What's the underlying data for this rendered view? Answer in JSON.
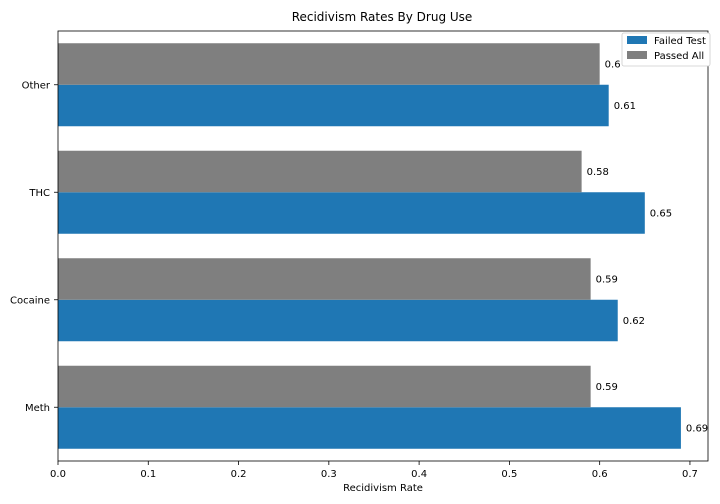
{
  "chart_data": {
    "type": "bar",
    "orientation": "horizontal",
    "title": "Recidivism Rates By Drug Use",
    "xlabel": "Recidivism Rate",
    "ylabel": "",
    "xlim": [
      0,
      0.72
    ],
    "x_ticks": [
      "0.0",
      "0.1",
      "0.2",
      "0.3",
      "0.4",
      "0.5",
      "0.6",
      "0.7"
    ],
    "categories": [
      "Meth",
      "Cocaine",
      "THC",
      "Other"
    ],
    "series": [
      {
        "name": "Failed Test",
        "color": "#1f77b4",
        "values": [
          0.69,
          0.62,
          0.65,
          0.61
        ]
      },
      {
        "name": "Passed All",
        "color": "#7f7f7f",
        "values": [
          0.59,
          0.59,
          0.58,
          0.6
        ]
      }
    ],
    "data_labels": [
      [
        "0.69",
        "0.62",
        "0.65",
        "0.61"
      ],
      [
        "0.59",
        "0.59",
        "0.58",
        "0.6"
      ]
    ],
    "legend_position": "top-right",
    "grid": false
  }
}
